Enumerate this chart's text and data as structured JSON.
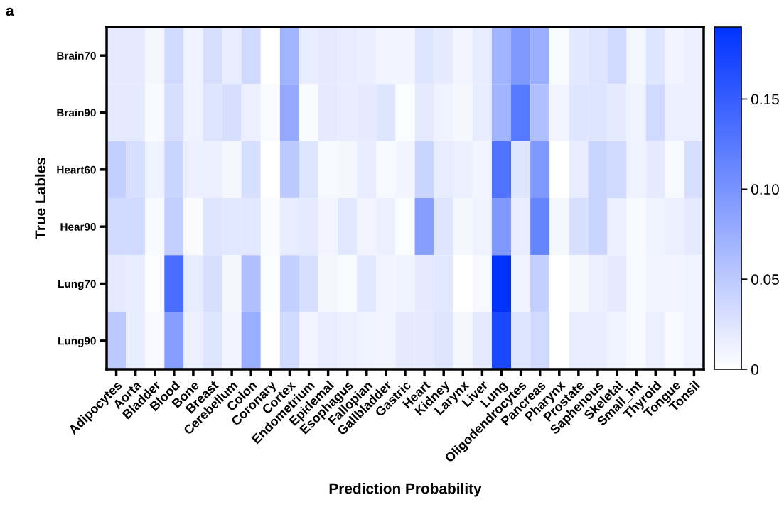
{
  "chart_data": {
    "type": "heatmap",
    "title": "a",
    "xlabel": "Prediction Probability",
    "ylabel": "True Lables",
    "categories": [
      "Adipocytes",
      "Aorta",
      "Bladder",
      "Blood",
      "Bone",
      "Breast",
      "Cerebellum",
      "Colon",
      "Coronary",
      "Cortex",
      "Endometrium",
      "Epidemal",
      "Esophagus",
      "Fallopian",
      "Gallbladder",
      "Gastric",
      "Heart",
      "Kidney",
      "Larynx",
      "Liver",
      "Lung",
      "Oligodendrocytes",
      "Pancreas",
      "Pharynx",
      "Prostate",
      "Saphenous",
      "Skeletal",
      "Small_int",
      "Thyroid",
      "Tongue",
      "Tonsil"
    ],
    "y_categories": [
      "Brain70",
      "Brain90",
      "Heart60",
      "Hear90",
      "Lung70",
      "Lung90"
    ],
    "cells": [
      [
        0.02,
        0.02,
        0.008,
        0.035,
        0.012,
        0.03,
        0.018,
        0.035,
        0,
        0.07,
        0.018,
        0.02,
        0.018,
        0.016,
        0.01,
        0.01,
        0.025,
        0.02,
        0.01,
        0.018,
        0.07,
        0.095,
        0.075,
        0.004,
        0.022,
        0.025,
        0.035,
        0.008,
        0.025,
        0.01,
        0.015
      ],
      [
        0.02,
        0.02,
        0.005,
        0.03,
        0.012,
        0.025,
        0.03,
        0.015,
        0.004,
        0.08,
        0.004,
        0.02,
        0.018,
        0.02,
        0.025,
        0.003,
        0.02,
        0.012,
        0.008,
        0.018,
        0.07,
        0.125,
        0.06,
        0.01,
        0.025,
        0.025,
        0.02,
        0.012,
        0.035,
        0.015,
        0.015
      ],
      [
        0.045,
        0.03,
        0.012,
        0.04,
        0.015,
        0.015,
        0.008,
        0.03,
        0,
        0.05,
        0.025,
        0.006,
        0.008,
        0.018,
        0.006,
        0.01,
        0.04,
        0.018,
        0.015,
        0.01,
        0.13,
        0.025,
        0.095,
        0,
        0.018,
        0.04,
        0.035,
        0.012,
        0.02,
        0.006,
        0.03
      ],
      [
        0.035,
        0.035,
        0.005,
        0.045,
        0.004,
        0.025,
        0.022,
        0.022,
        0.004,
        0.018,
        0.02,
        0.01,
        0.022,
        0.01,
        0.015,
        0.003,
        0.09,
        0.025,
        0.008,
        0.012,
        0.095,
        0.018,
        0.115,
        0.008,
        0.03,
        0.04,
        0.015,
        0.006,
        0.012,
        0.015,
        0.02
      ],
      [
        0.02,
        0.018,
        0.002,
        0.135,
        0.018,
        0.03,
        0.008,
        0.06,
        0.003,
        0.045,
        0.03,
        0.008,
        0.004,
        0.022,
        0.01,
        0.012,
        0.02,
        0.022,
        0,
        0.006,
        0.19,
        0.012,
        0.045,
        0,
        0.008,
        0.015,
        0.02,
        0.006,
        0.01,
        0.01,
        0.012
      ],
      [
        0.05,
        0.018,
        0.006,
        0.09,
        0.015,
        0.025,
        0.01,
        0.075,
        0,
        0.035,
        0.01,
        0.018,
        0.015,
        0.012,
        0.01,
        0.02,
        0.02,
        0.025,
        0.008,
        0.02,
        0.17,
        0.025,
        0.035,
        0,
        0.018,
        0.018,
        0.012,
        0.006,
        0.015,
        0.006,
        0.012
      ]
    ],
    "colors": [
      "#ffffff",
      "#0033ff"
    ],
    "clim": [
      0,
      0.19
    ],
    "cticks": [
      0,
      0.05,
      {
        "value": 0.1,
        "label": "0.10"
      },
      0.15
    ]
  }
}
